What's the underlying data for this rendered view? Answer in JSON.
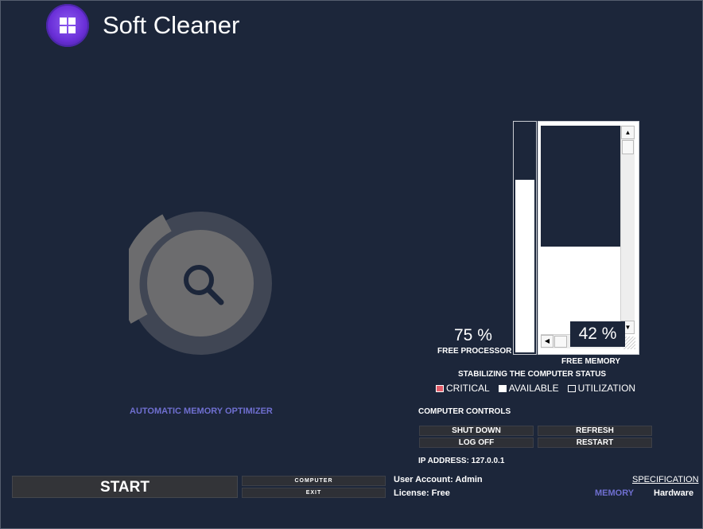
{
  "app": {
    "title": "Soft Cleaner",
    "logo_icon": "grid-icon",
    "accent_color": "#6a2fd8"
  },
  "optimizer": {
    "label": "AUTOMATIC MEMORY OPTIMIZER",
    "icon": "search-icon",
    "label_color": "#6f6fd0"
  },
  "processor": {
    "value_text": "75 %",
    "level_percent": 75,
    "label": "FREE PROCESSOR"
  },
  "memory": {
    "value_text": "42 %",
    "level_percent": 42,
    "label": "FREE MEMORY"
  },
  "status": {
    "title": "STABILIZING THE COMPUTER STATUS",
    "legend": [
      {
        "label": "CRITICAL",
        "color": "#e35d6a"
      },
      {
        "label": "AVAILABLE",
        "color": "#ffffff"
      },
      {
        "label": "UTILIZATION",
        "color": "#1c263a"
      }
    ]
  },
  "controls": {
    "title": "COMPUTER CONTROLS",
    "shut_down": "SHUT DOWN",
    "refresh": "REFRESH",
    "log_off": "LOG OFF",
    "restart": "RESTART",
    "ip_address": "IP ADDRESS: 127.0.0.1"
  },
  "bottom": {
    "start": "START",
    "computer": "COMPUTER",
    "exit": "EXIT",
    "user_account": "User Account: Admin",
    "license": "License: Free",
    "specification": "SPECIFICATION",
    "memory_tab": "MEMORY",
    "hardware_tab": "Hardware"
  }
}
